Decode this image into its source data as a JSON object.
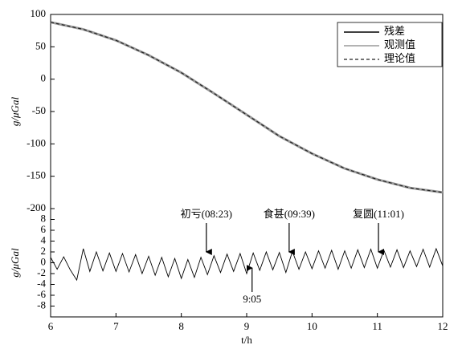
{
  "chart_data": [
    {
      "type": "line",
      "ylabel": "g/μGal",
      "x": [
        6,
        6.5,
        7,
        7.5,
        8,
        8.5,
        9,
        9.5,
        10,
        10.5,
        11,
        11.5,
        12
      ],
      "series": [
        {
          "name": "观测值",
          "color": "#9a9a9a",
          "values": [
            88,
            77,
            60,
            37,
            10,
            -22,
            -55,
            -88,
            -115,
            -138,
            -155,
            -168,
            -175
          ]
        },
        {
          "name": "理论值",
          "color": "#222222",
          "dashed": true,
          "values": [
            88,
            77,
            60,
            37,
            10,
            -22,
            -55,
            -88,
            -115,
            -138,
            -155,
            -168,
            -175
          ]
        }
      ],
      "xlim": [
        6,
        12
      ],
      "ylim": [
        -200,
        100
      ],
      "yticks": [
        100,
        50,
        0,
        -50,
        -100,
        -150,
        -200
      ],
      "legend": "upper-right"
    },
    {
      "type": "line",
      "ylabel": "g/μGal",
      "xlabel": "t/h",
      "x": [
        6,
        6.1,
        6.2,
        6.3,
        6.4,
        6.5,
        6.6,
        6.7,
        6.8,
        6.9,
        7,
        7.1,
        7.2,
        7.3,
        7.4,
        7.5,
        7.6,
        7.7,
        7.8,
        7.9,
        8,
        8.1,
        8.2,
        8.3,
        8.4,
        8.5,
        8.6,
        8.7,
        8.8,
        8.9,
        9,
        9.1,
        9.2,
        9.3,
        9.4,
        9.5,
        9.6,
        9.7,
        9.8,
        9.9,
        10,
        10.1,
        10.2,
        10.3,
        10.4,
        10.5,
        10.6,
        10.7,
        10.8,
        10.9,
        11,
        11.1,
        11.2,
        11.3,
        11.4,
        11.5,
        11.6,
        11.7,
        11.8,
        11.9,
        12
      ],
      "series": [
        {
          "name": "残差",
          "color": "#000000",
          "values": [
            1.0,
            -1.2,
            1.1,
            -1.3,
            -3.2,
            2.6,
            -1.6,
            2.0,
            -1.5,
            1.8,
            -1.6,
            1.7,
            -1.7,
            1.5,
            -2.0,
            1.2,
            -2.3,
            1.0,
            -2.6,
            0.8,
            -2.9,
            0.6,
            -2.7,
            1.0,
            -2.2,
            1.3,
            -1.8,
            1.6,
            -1.6,
            1.7,
            -2.0,
            1.8,
            -1.4,
            2.0,
            -1.3,
            1.9,
            -1.8,
            2.1,
            -1.2,
            2.0,
            -1.1,
            2.2,
            -1.0,
            2.3,
            -1.2,
            2.2,
            -1.0,
            2.4,
            -0.9,
            2.5,
            -1.0,
            2.3,
            -0.8,
            2.4,
            -0.9,
            2.2,
            -0.7,
            2.5,
            -0.8,
            2.6,
            -0.6
          ]
        }
      ],
      "xlim": [
        6,
        12
      ],
      "xticks": [
        6,
        7,
        8,
        9,
        10,
        11,
        12
      ],
      "ylim": [
        -10,
        10
      ],
      "yticks": [
        8,
        6,
        4,
        2,
        0,
        -2,
        -4,
        -6,
        -8
      ],
      "annotations": [
        {
          "text": "初亏(08:23)",
          "x": 8.383,
          "arrow": "down"
        },
        {
          "text": "食甚(09:39)",
          "x": 9.65,
          "arrow": "down"
        },
        {
          "text": "复圆(11:01)",
          "x": 11.017,
          "arrow": "down"
        },
        {
          "text": "9:05",
          "x": 9.083,
          "arrow": "up"
        }
      ]
    }
  ]
}
